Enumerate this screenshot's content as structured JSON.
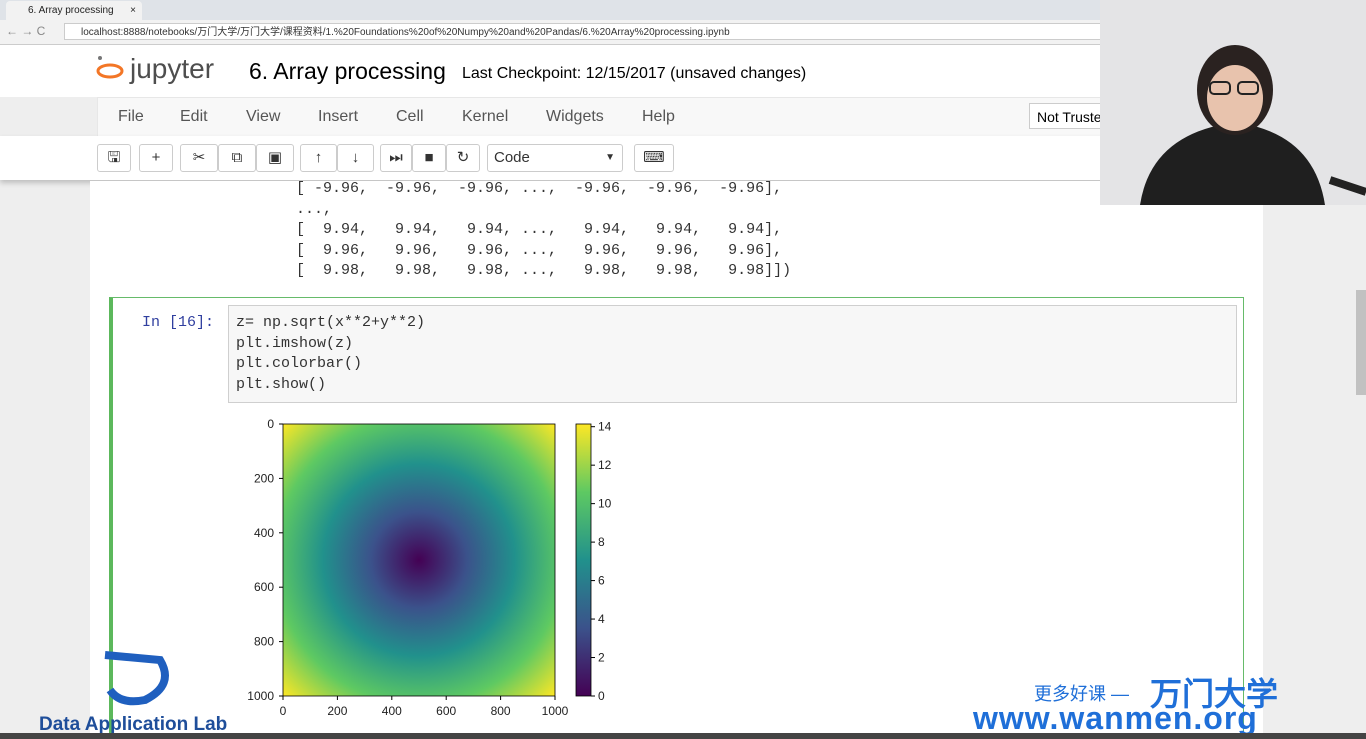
{
  "browser": {
    "tab_title": "6. Array processing",
    "url": "localhost:8888/notebooks/万门大学/万门大学/课程资料/1.%20Foundations%20of%20Numpy%20and%20Pandas/6.%20Array%20processing.ipynb"
  },
  "header": {
    "logo": "jupyter",
    "notebook_title": "6. Array processing",
    "checkpoint": "Last Checkpoint: 12/15/2017 (unsaved changes)",
    "trust": "Not Trusted"
  },
  "menu": [
    "File",
    "Edit",
    "View",
    "Insert",
    "Cell",
    "Kernel",
    "Widgets",
    "Help"
  ],
  "toolbar": {
    "cell_type": "Code"
  },
  "output_lines": [
    "[ -9.96,  -9.96,  -9.96, ...,  -9.96,  -9.96,  -9.96],",
    "...,",
    "[  9.94,   9.94,   9.94, ...,   9.94,   9.94,   9.94],",
    "[  9.96,   9.96,   9.96, ...,   9.96,   9.96,   9.96],",
    "[  9.98,   9.98,   9.98, ...,   9.98,   9.98,   9.98]])"
  ],
  "cell": {
    "prompt": "In [16]:",
    "code": [
      "z= np.sqrt(x**2+y**2)",
      "plt.imshow(z)",
      "plt.colorbar()",
      "plt.show()"
    ]
  },
  "plot": {
    "type": "heatmap",
    "xlim": [
      0,
      1000
    ],
    "ylim": [
      1000,
      0
    ],
    "xticks": [
      0,
      200,
      400,
      600,
      800,
      1000
    ],
    "yticks": [
      0,
      200,
      400,
      600,
      800,
      1000
    ],
    "clim": [
      0,
      14.14
    ],
    "colorbar_ticks": [
      0,
      2,
      4,
      6,
      8,
      10,
      12,
      14
    ]
  },
  "watermarks": {
    "left": "Data Application Lab",
    "slogan": "更多好课 —",
    "brand": "万门大学",
    "site": "www.wanmen.org"
  }
}
